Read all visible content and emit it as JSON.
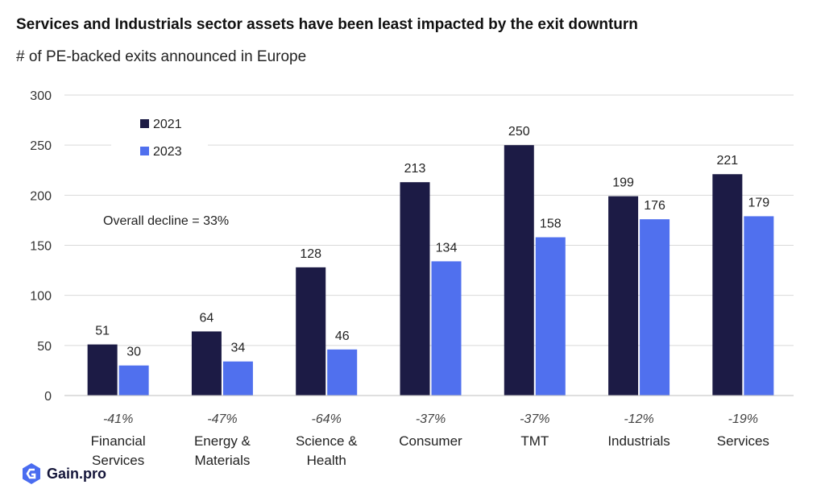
{
  "header": {
    "title": "Services and Industrials sector assets have been least impacted by the exit downturn",
    "subtitle": "# of PE-backed exits announced in Europe"
  },
  "brand": {
    "name": "Gain.pro",
    "logo_icon": "gain-logo-icon",
    "logo_color": "#4a6cf0"
  },
  "annotation": "Overall decline  =  33%",
  "colors": {
    "series_2021": "#1c1b45",
    "series_2023": "#5070ee",
    "grid": "#d9d9d9"
  },
  "chart_data": {
    "type": "bar",
    "categories": [
      [
        "Financial",
        "Services"
      ],
      [
        "Energy &",
        "Materials"
      ],
      [
        "Science &",
        "Health"
      ],
      [
        "Consumer"
      ],
      [
        "TMT"
      ],
      [
        "Industrials"
      ],
      [
        "Services"
      ]
    ],
    "series": [
      {
        "name": "2021",
        "values": [
          51,
          64,
          128,
          213,
          250,
          199,
          221
        ]
      },
      {
        "name": "2023",
        "values": [
          30,
          34,
          46,
          134,
          158,
          176,
          179
        ]
      }
    ],
    "changes": [
      "-41%",
      "-47%",
      "-64%",
      "-37%",
      "-37%",
      "-12%",
      "-19%"
    ],
    "ylim": [
      0,
      300
    ],
    "yticks": [
      0,
      50,
      100,
      150,
      200,
      250,
      300
    ],
    "grid": true,
    "legend": "top-left",
    "title": "Services and Industrials sector assets have been least impacted by the exit downturn",
    "xlabel": "",
    "ylabel": ""
  }
}
